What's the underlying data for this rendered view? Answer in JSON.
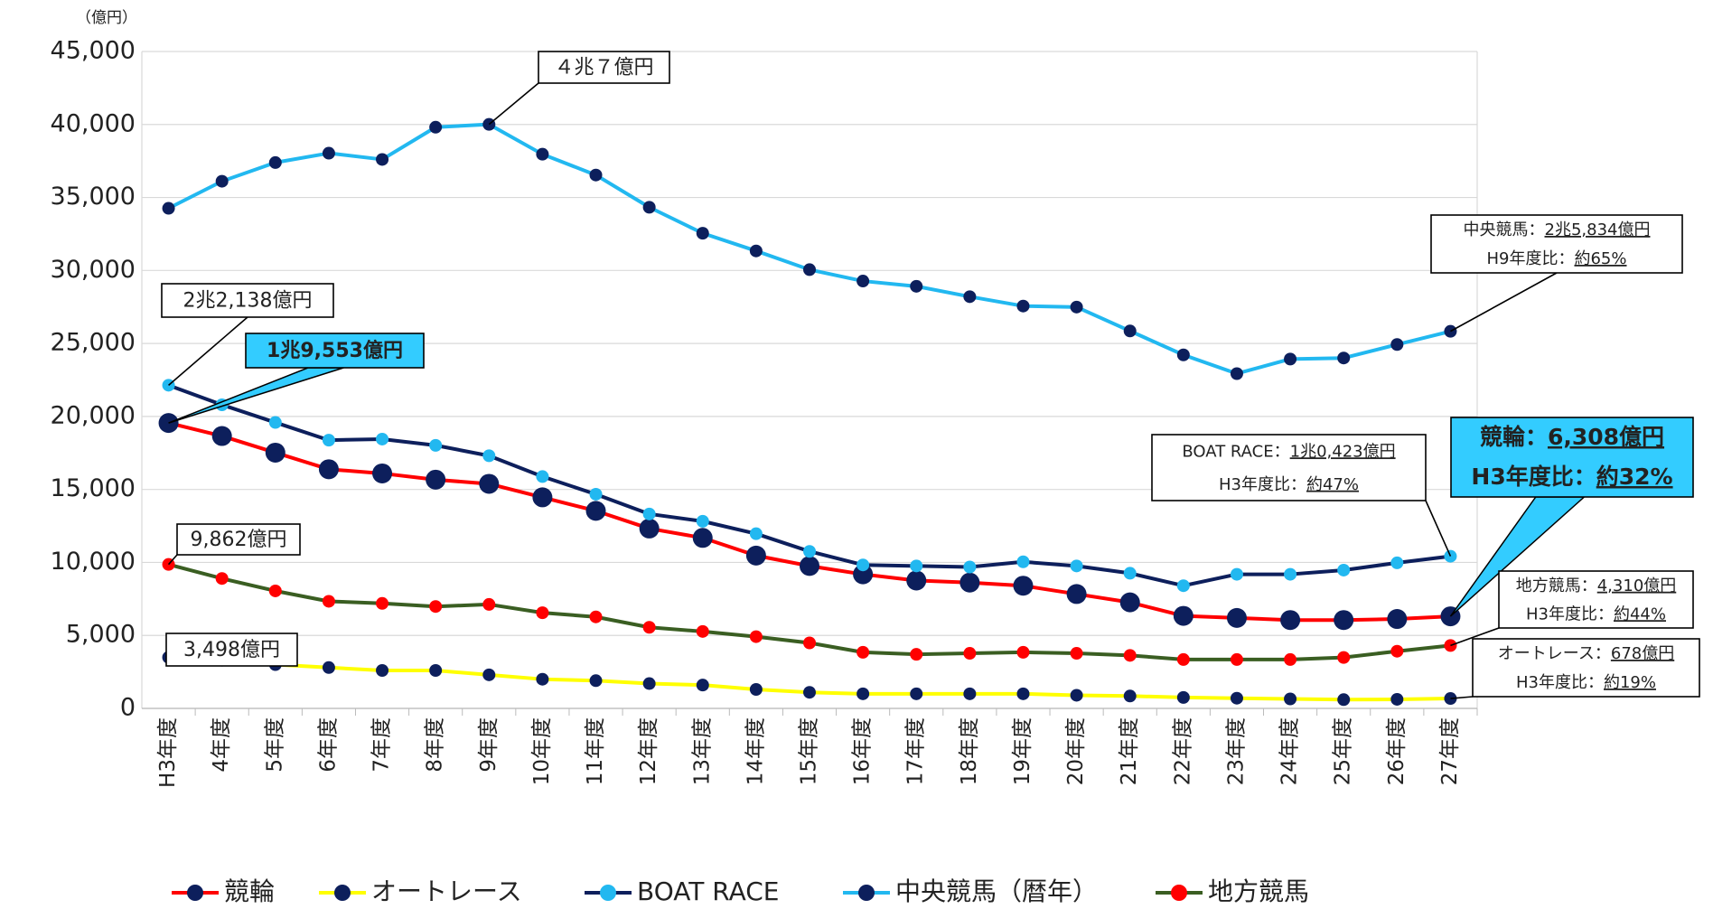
{
  "chart_data": {
    "type": "line",
    "unit": "（億円）",
    "categories": [
      "H3年度",
      "4年度",
      "5年度",
      "6年度",
      "7年度",
      "8年度",
      "9年度",
      "10年度",
      "11年度",
      "12年度",
      "13年度",
      "14年度",
      "15年度",
      "16年度",
      "17年度",
      "18年度",
      "19年度",
      "20年度",
      "21年度",
      "22年度",
      "23年度",
      "24年度",
      "25年度",
      "26年度",
      "27年度"
    ],
    "ylim": [
      0,
      45000
    ],
    "yticks": [
      {
        "value": 0,
        "label": "0"
      },
      {
        "value": 5000,
        "label": "5,000"
      },
      {
        "value": 10000,
        "label": "10,000"
      },
      {
        "value": 15000,
        "label": "15,000"
      },
      {
        "value": 20000,
        "label": "20,000"
      },
      {
        "value": 25000,
        "label": "25,000"
      },
      {
        "value": 30000,
        "label": "30,000"
      },
      {
        "value": 35000,
        "label": "35,000"
      },
      {
        "value": 40000,
        "label": "40,000"
      },
      {
        "value": 45000,
        "label": "45,000"
      }
    ],
    "grid": true,
    "series": [
      {
        "name": "競輪",
        "color": "#ff0000",
        "marker_color": "#0d1f5c",
        "marker_size": 11,
        "values": [
          19553,
          18660,
          17521,
          16382,
          16097,
          15670,
          15385,
          14459,
          13533,
          12322,
          11681,
          10470,
          9758,
          9188,
          8761,
          8618,
          8405,
          7835,
          7265,
          6339,
          6197,
          6054,
          6054,
          6125,
          6308
        ]
      },
      {
        "name": "オートレース",
        "color": "#ffff00",
        "marker_color": "#0d1f5c",
        "marker_size": 7,
        "values": [
          3498,
          3300,
          3000,
          2800,
          2600,
          2600,
          2300,
          2000,
          1900,
          1700,
          1600,
          1300,
          1100,
          1000,
          1000,
          1000,
          1000,
          900,
          850,
          750,
          700,
          650,
          600,
          620,
          678
        ]
      },
      {
        "name": "BOAT RACE",
        "color": "#0d1f5c",
        "marker_color": "#22b8f0",
        "marker_size": 7,
        "values": [
          22138,
          20798,
          19587,
          18376,
          18447,
          18020,
          17308,
          15883,
          14672,
          13319,
          12821,
          11966,
          10755,
          9829,
          9758,
          9687,
          10043,
          9758,
          9259,
          8405,
          9188,
          9188,
          9473,
          9972,
          10423
        ]
      },
      {
        "name": "中央競馬（暦年）",
        "color": "#22b8f0",
        "marker_color": "#0d1f5c",
        "marker_size": 7,
        "values": [
          34259,
          36111,
          37393,
          38034,
          37607,
          39815,
          40007,
          37963,
          36538,
          34330,
          32550,
          31339,
          30057,
          29274,
          28917,
          28205,
          27564,
          27493,
          25855,
          24217,
          22934,
          23932,
          24003,
          24929,
          25834
        ]
      },
      {
        "name": "地方競馬",
        "color": "#3a5e22",
        "marker_color": "#ff0000",
        "marker_size": 7,
        "values": [
          9862,
          8900,
          8048,
          7336,
          7194,
          6980,
          7123,
          6553,
          6268,
          5556,
          5271,
          4915,
          4487,
          3846,
          3704,
          3775,
          3846,
          3775,
          3632,
          3348,
          3348,
          3348,
          3490,
          3917,
          4310
        ]
      }
    ],
    "annotations": [
      {
        "lines": [
          [
            "４兆７億円"
          ]
        ]
      },
      {
        "lines": [
          [
            "2兆2,138億円"
          ]
        ]
      },
      {
        "lines": [
          [
            "1兆9,553億円"
          ]
        ],
        "highlight": true
      },
      {
        "lines": [
          [
            "9,862億円"
          ]
        ]
      },
      {
        "lines": [
          [
            "3,498億円"
          ]
        ]
      },
      {
        "lines": [
          [
            "中央競馬：",
            "2兆5,834億円"
          ],
          [
            "H9年度比：",
            "約65%"
          ]
        ]
      },
      {
        "lines": [
          [
            "BOAT RACE：",
            "1兆0,423億円"
          ],
          [
            "H3年度比：",
            "約47%"
          ]
        ]
      },
      {
        "lines": [
          [
            "競輪：",
            "6,308億円"
          ],
          [
            "H3年度比：",
            "約32%"
          ]
        ],
        "highlight": true
      },
      {
        "lines": [
          [
            "地方競馬：",
            "4,310億円"
          ],
          [
            "H3年度比：",
            "約44%"
          ]
        ]
      },
      {
        "lines": [
          [
            "オートレース：",
            "678億円"
          ],
          [
            "H3年度比：",
            "約19%"
          ]
        ]
      }
    ]
  }
}
